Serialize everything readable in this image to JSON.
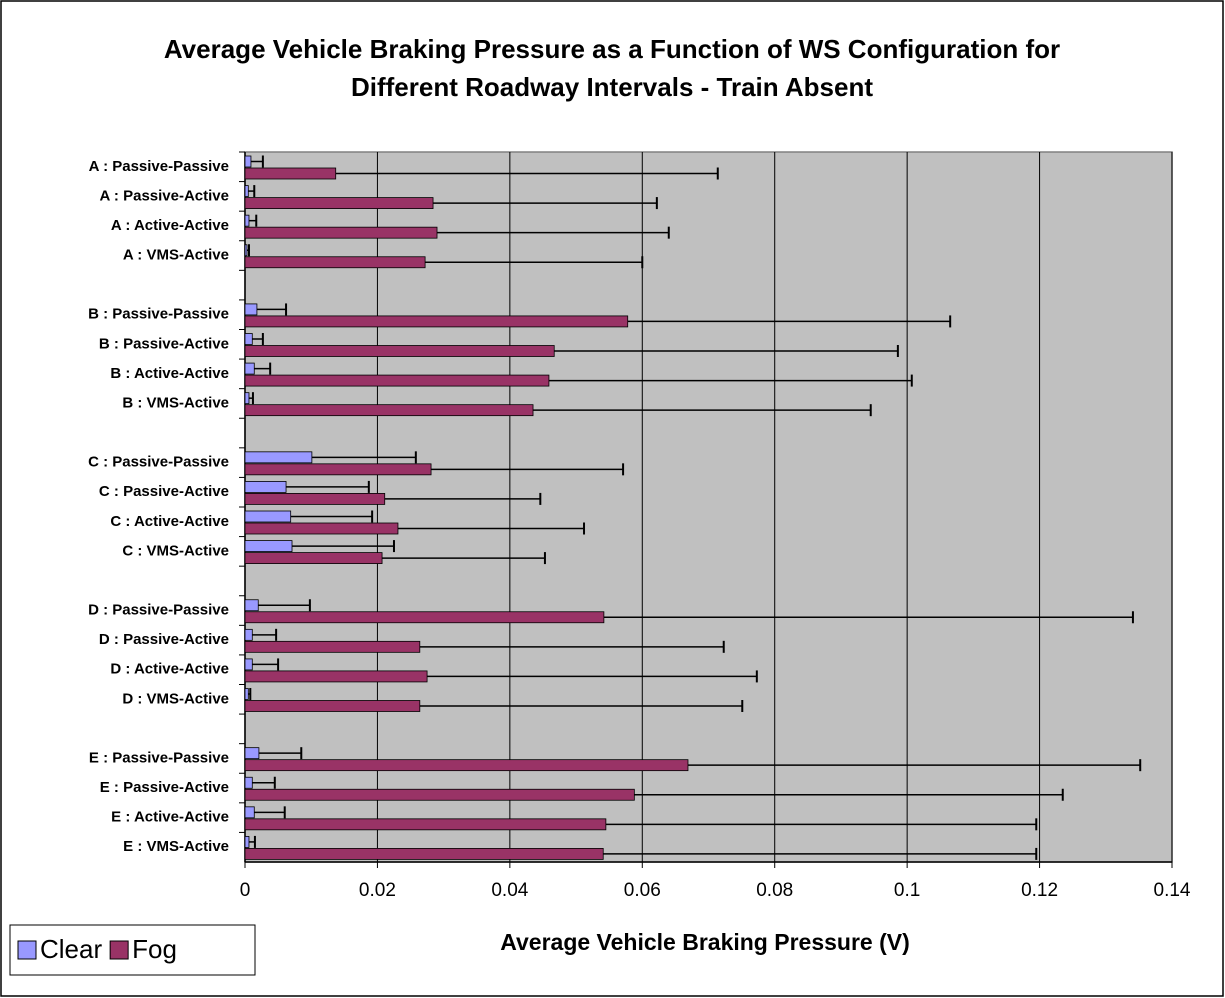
{
  "chart_data": {
    "type": "hbar",
    "title": "Average Vehicle Braking Pressure as a Function of WS Configuration for Different Roadway Intervals - Train Absent",
    "x_label": "Average Vehicle Braking Pressure (V)",
    "categories": [
      "A : Passive-Passive",
      "A : Passive-Active",
      "A : Active-Active",
      "A : VMS-Active",
      null,
      "B : Passive-Passive",
      "B : Passive-Active",
      "B : Active-Active",
      "B : VMS-Active",
      null,
      "C : Passive-Passive",
      "C : Passive-Active",
      "C : Active-Active",
      "C : VMS-Active",
      null,
      "D : Passive-Passive",
      "D : Passive-Active",
      "D : Active-Active",
      "D : VMS-Active",
      null,
      "E : Passive-Passive",
      "E : Passive-Active",
      "E : Active-Active",
      "E : VMS-Active"
    ],
    "series": [
      {
        "name": "Clear",
        "color": "#9999ff",
        "values": [
          0.0009,
          0.0005,
          0.0006,
          0.0003,
          null,
          0.0018,
          0.0011,
          0.0014,
          0.0006,
          null,
          0.0101,
          0.0062,
          0.0069,
          0.0071,
          null,
          0.002,
          0.0011,
          0.0011,
          0.0005,
          null,
          0.0021,
          0.0011,
          0.0014,
          0.0006
        ],
        "errors": [
          0.0018,
          0.0009,
          0.0011,
          0.0003,
          null,
          0.0044,
          0.0016,
          0.0024,
          0.0006,
          null,
          0.0157,
          0.0125,
          0.0123,
          0.0154,
          null,
          0.0078,
          0.0036,
          0.0039,
          0.0003,
          null,
          0.0064,
          0.0034,
          0.0046,
          0.0009
        ]
      },
      {
        "name": "Fog",
        "color": "#993366",
        "values": [
          0.0137,
          0.0284,
          0.029,
          0.0272,
          null,
          0.0578,
          0.0467,
          0.0459,
          0.0435,
          null,
          0.0281,
          0.0211,
          0.0231,
          0.0207,
          null,
          0.0542,
          0.0264,
          0.0275,
          0.0264,
          null,
          0.0669,
          0.0588,
          0.0545,
          0.0541
        ],
        "errors": [
          0.0577,
          0.0338,
          0.035,
          0.0328,
          null,
          0.0487,
          0.0519,
          0.0548,
          0.051,
          null,
          0.029,
          0.0235,
          0.0281,
          0.0246,
          null,
          0.0799,
          0.0459,
          0.0498,
          0.0487,
          null,
          0.0683,
          0.0647,
          0.065,
          0.0654
        ]
      }
    ],
    "xlim": [
      0,
      0.14
    ],
    "xticks": [
      0,
      0.02,
      0.04,
      0.06,
      0.08,
      0.1,
      0.12,
      0.14
    ],
    "grid": true,
    "legend": "bottom-left",
    "plot_background": "#c0c0c0"
  }
}
